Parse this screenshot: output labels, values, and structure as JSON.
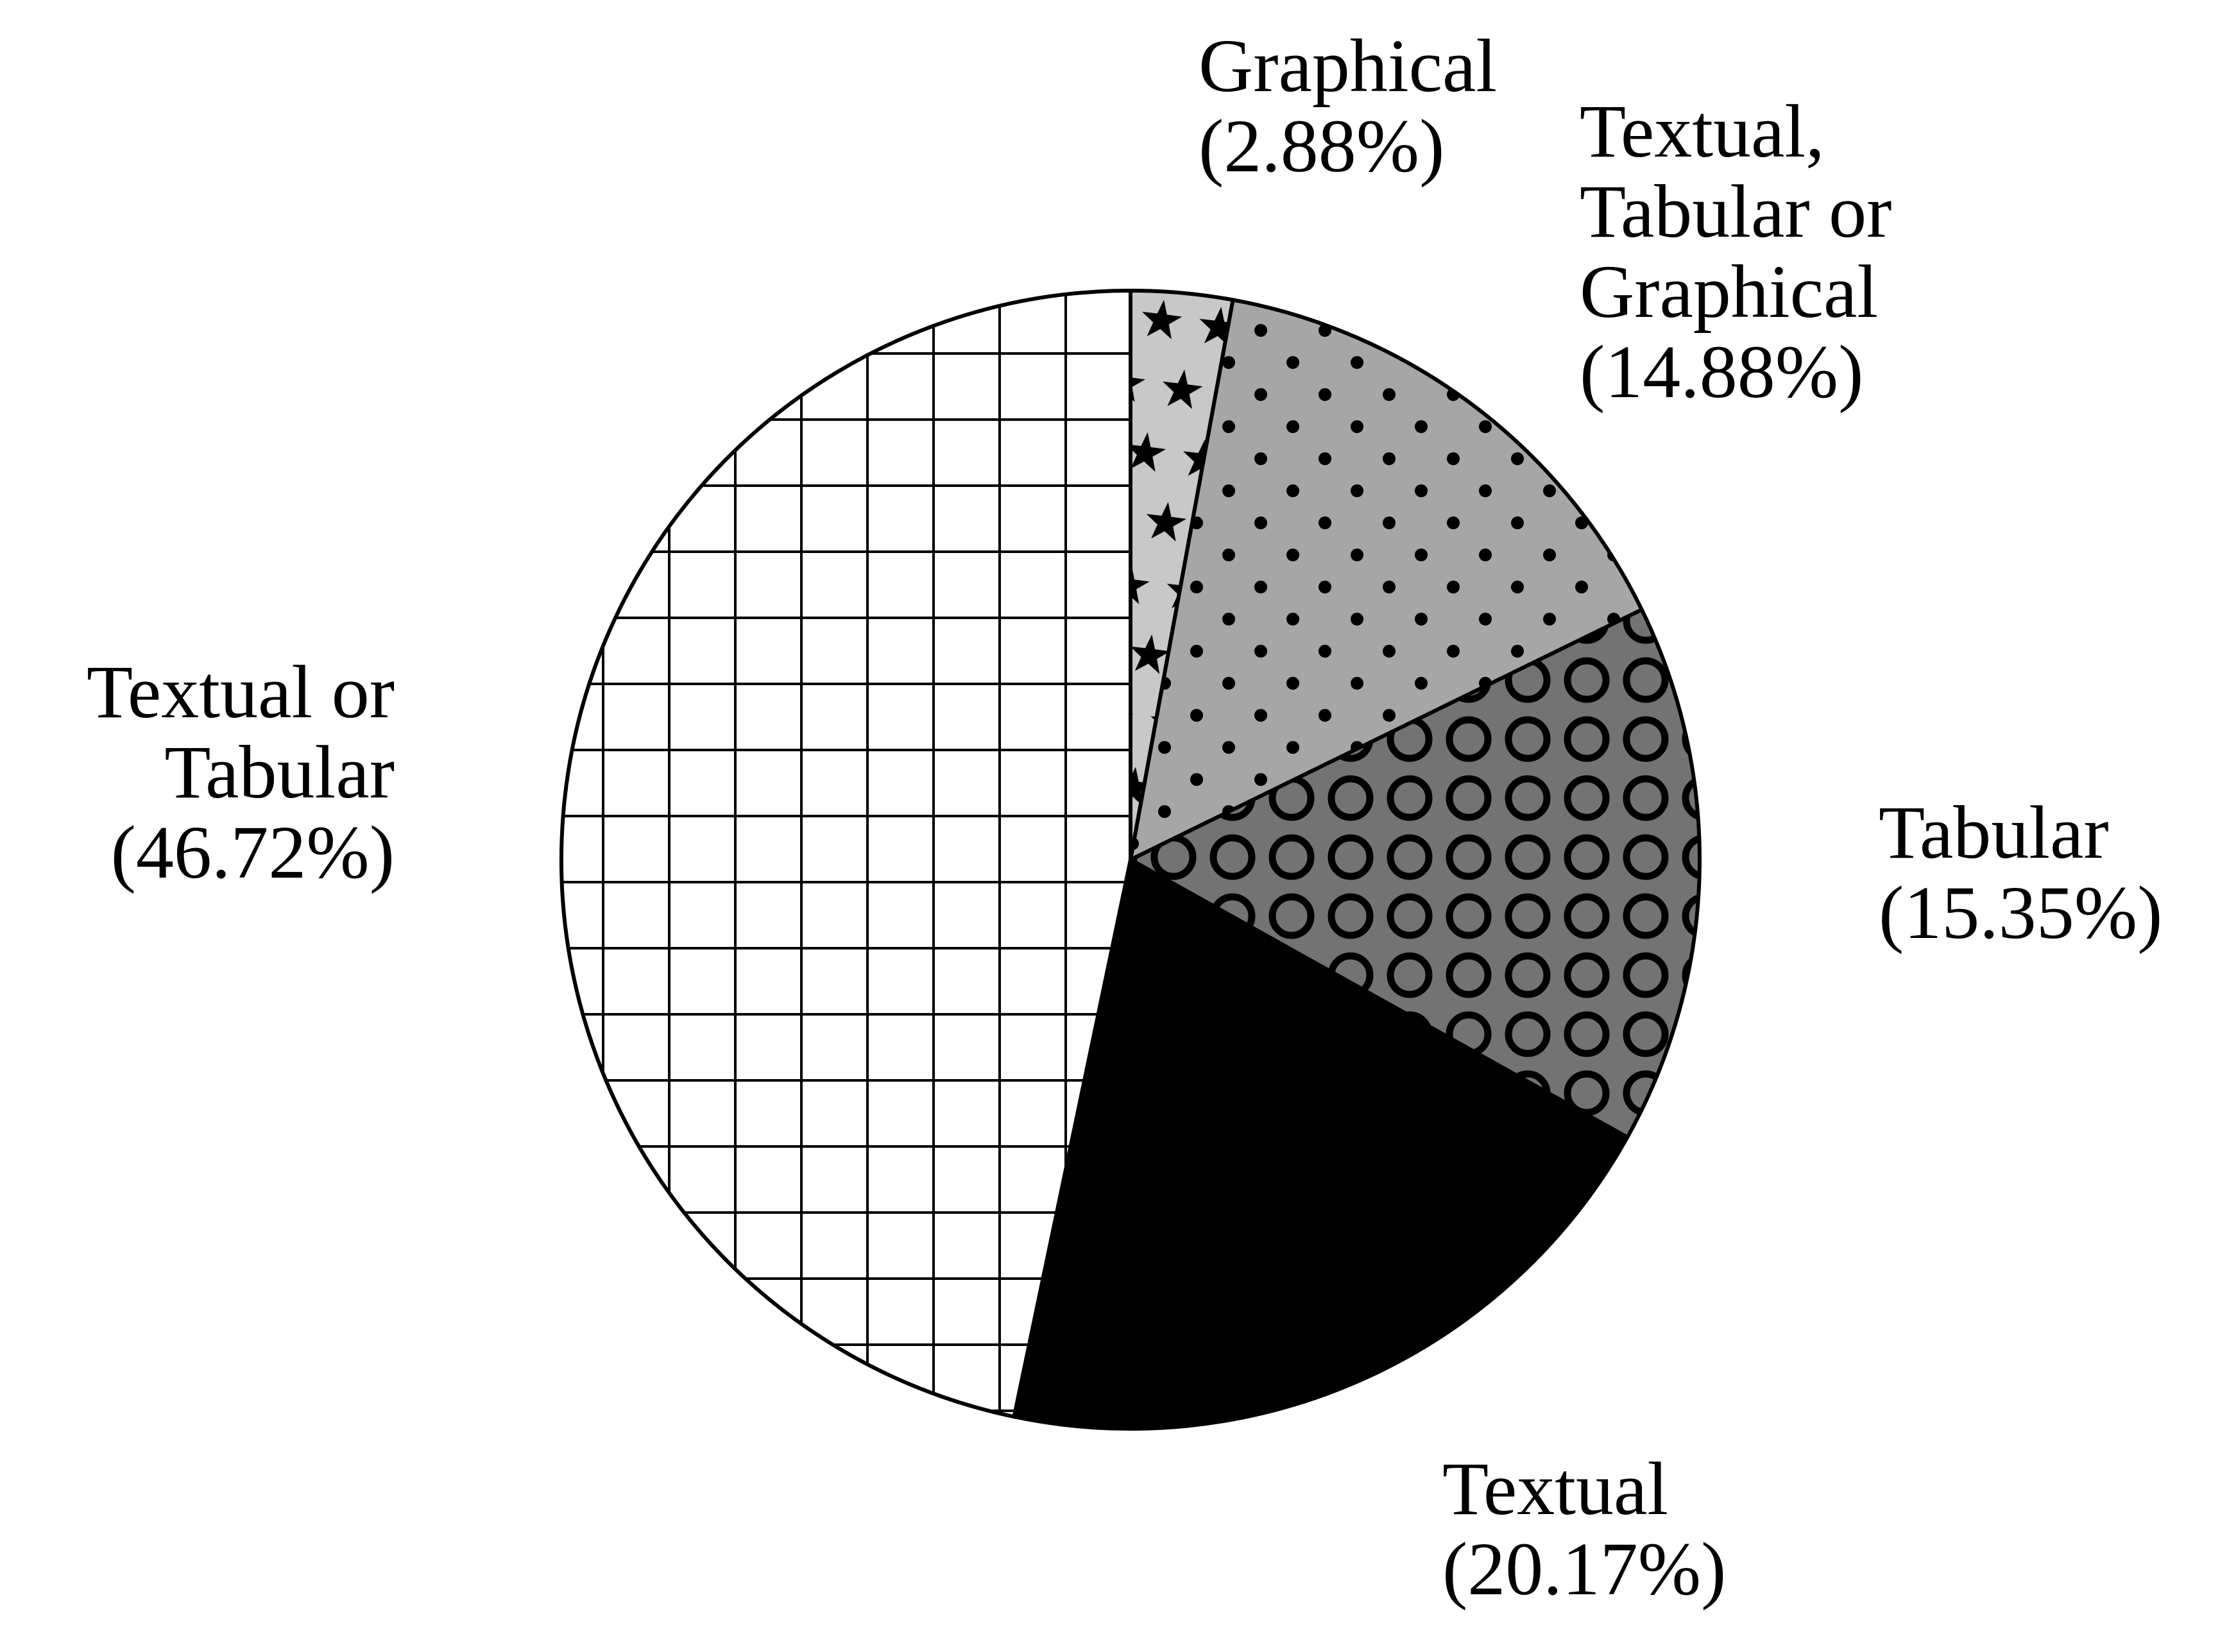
{
  "chart_data": {
    "type": "pie",
    "title": "",
    "start": "top",
    "direction": "clockwise",
    "slices": [
      {
        "label": "Graphical",
        "value": 2.88,
        "value_label": "(2.88%)",
        "pattern": "stars",
        "fill": "#c8c8c8",
        "label_lines": [
          "Graphical",
          "(2.88%)"
        ]
      },
      {
        "label": "Textual, Tabular or Graphical",
        "value": 14.88,
        "value_label": "(14.88%)",
        "pattern": "dots",
        "fill": "#a6a6a6",
        "label_lines": [
          "Textual,",
          "Tabular or",
          "Graphical",
          "(14.88%)"
        ]
      },
      {
        "label": "Tabular",
        "value": 15.35,
        "value_label": "(15.35%)",
        "pattern": "rings",
        "fill": "#737373",
        "label_lines": [
          "Tabular",
          "(15.35%)"
        ]
      },
      {
        "label": "Textual",
        "value": 20.17,
        "value_label": "(20.17%)",
        "pattern": "solid",
        "fill": "#000000",
        "label_lines": [
          "Textual",
          "(20.17%)"
        ]
      },
      {
        "label": "Textual or Tabular",
        "value": 46.72,
        "value_label": "(46.72%)",
        "pattern": "grid",
        "fill": "#ffffff",
        "label_lines": [
          "Textual or",
          "Tabular",
          "(46.72%)"
        ]
      }
    ]
  }
}
